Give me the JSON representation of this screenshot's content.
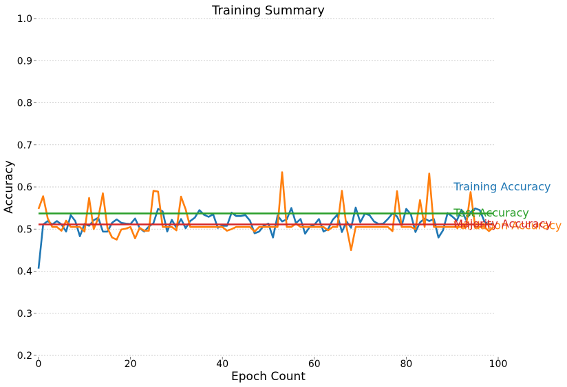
{
  "chart_data": {
    "type": "line",
    "title": "Training Summary",
    "xlabel": "Epoch Count",
    "ylabel": "Accuracy",
    "xlim": [
      0,
      100
    ],
    "ylim": [
      0.2,
      1.0
    ],
    "xticks": [
      "0",
      "20",
      "40",
      "60",
      "80",
      "100"
    ],
    "yticks": [
      "0.2",
      "0.3",
      "0.4",
      "0.5",
      "0.6",
      "0.7",
      "0.8",
      "0.9",
      "1.0"
    ],
    "grid": "horizontal dotted",
    "legend": "inline labels at right",
    "series": [
      {
        "name": "Training Accuracy",
        "color": "#1f77b4",
        "x": [
          0,
          1,
          2,
          3,
          4,
          5,
          6,
          7,
          8,
          9,
          10,
          11,
          12,
          13,
          14,
          15,
          16,
          17,
          18,
          19,
          20,
          21,
          22,
          23,
          24,
          25,
          26,
          27,
          28,
          29,
          30,
          31,
          32,
          33,
          34,
          35,
          36,
          37,
          38,
          39,
          40,
          41,
          42,
          43,
          44,
          45,
          46,
          47,
          48,
          49,
          50,
          51,
          52,
          53,
          54,
          55,
          56,
          57,
          58,
          59,
          60,
          61,
          62,
          63,
          64,
          65,
          66,
          67,
          68,
          69,
          70,
          71,
          72,
          73,
          74,
          75,
          76,
          77,
          78,
          79,
          80,
          81,
          82,
          83,
          84,
          85,
          86,
          87,
          88,
          89,
          90,
          91,
          92,
          93,
          94,
          95,
          96,
          97,
          98,
          99
        ],
        "y": [
          0.406,
          0.511,
          0.519,
          0.511,
          0.519,
          0.511,
          0.494,
          0.533,
          0.519,
          0.483,
          0.512,
          0.508,
          0.521,
          0.527,
          0.494,
          0.494,
          0.515,
          0.523,
          0.515,
          0.513,
          0.512,
          0.525,
          0.502,
          0.494,
          0.506,
          0.514,
          0.548,
          0.542,
          0.494,
          0.522,
          0.503,
          0.524,
          0.502,
          0.519,
          0.527,
          0.545,
          0.534,
          0.529,
          0.535,
          0.503,
          0.508,
          0.508,
          0.539,
          0.531,
          0.531,
          0.533,
          0.52,
          0.49,
          0.494,
          0.508,
          0.513,
          0.48,
          0.532,
          0.518,
          0.523,
          0.55,
          0.514,
          0.524,
          0.489,
          0.505,
          0.51,
          0.524,
          0.494,
          0.5,
          0.522,
          0.534,
          0.493,
          0.518,
          0.503,
          0.551,
          0.516,
          0.537,
          0.533,
          0.518,
          0.512,
          0.513,
          0.524,
          0.537,
          0.53,
          0.508,
          0.548,
          0.535,
          0.493,
          0.516,
          0.525,
          0.519,
          0.524,
          0.48,
          0.497,
          0.538,
          0.53,
          0.52,
          0.546,
          0.522,
          0.54,
          0.549,
          0.545,
          0.518,
          0.511,
          0.514
        ]
      },
      {
        "name": "Validation Accuracy",
        "color": "#ff7f0e",
        "x": [
          0,
          1,
          2,
          3,
          4,
          5,
          6,
          7,
          8,
          9,
          10,
          11,
          12,
          13,
          14,
          15,
          16,
          17,
          18,
          19,
          20,
          21,
          22,
          23,
          24,
          25,
          26,
          27,
          28,
          29,
          30,
          31,
          32,
          33,
          34,
          35,
          36,
          37,
          38,
          39,
          40,
          41,
          42,
          43,
          44,
          45,
          46,
          47,
          48,
          49,
          50,
          51,
          52,
          53,
          54,
          55,
          56,
          57,
          58,
          59,
          60,
          61,
          62,
          63,
          64,
          65,
          66,
          67,
          68,
          69,
          70,
          71,
          72,
          73,
          74,
          75,
          76,
          77,
          78,
          79,
          80,
          81,
          82,
          83,
          84,
          85,
          86,
          87,
          88,
          89,
          90,
          91,
          92,
          93,
          94,
          95,
          96,
          97,
          98,
          99
        ],
        "y": [
          0.548,
          0.578,
          0.525,
          0.505,
          0.505,
          0.496,
          0.52,
          0.505,
          0.505,
          0.505,
          0.494,
          0.574,
          0.5,
          0.526,
          0.585,
          0.502,
          0.48,
          0.475,
          0.499,
          0.501,
          0.505,
          0.478,
          0.503,
          0.496,
          0.496,
          0.591,
          0.589,
          0.505,
          0.505,
          0.505,
          0.497,
          0.577,
          0.547,
          0.505,
          0.505,
          0.505,
          0.505,
          0.505,
          0.505,
          0.505,
          0.505,
          0.496,
          0.5,
          0.505,
          0.505,
          0.505,
          0.505,
          0.494,
          0.505,
          0.505,
          0.505,
          0.505,
          0.505,
          0.635,
          0.505,
          0.505,
          0.513,
          0.505,
          0.505,
          0.505,
          0.505,
          0.505,
          0.505,
          0.497,
          0.505,
          0.505,
          0.591,
          0.505,
          0.45,
          0.505,
          0.505,
          0.505,
          0.505,
          0.505,
          0.505,
          0.505,
          0.505,
          0.495,
          0.59,
          0.505,
          0.505,
          0.505,
          0.5,
          0.569,
          0.505,
          0.632,
          0.505,
          0.505,
          0.505,
          0.505,
          0.505,
          0.505,
          0.505,
          0.505,
          0.588,
          0.505,
          0.505,
          0.505,
          0.495,
          0.505
        ]
      },
      {
        "name": "Test Accuracy",
        "color": "#2ca02c",
        "x": [
          0,
          99
        ],
        "y": [
          0.537,
          0.537
        ]
      },
      {
        "name": "Majority Accuracy",
        "color": "#d62728",
        "x": [
          0,
          99
        ],
        "y": [
          0.511,
          0.511
        ]
      }
    ]
  }
}
